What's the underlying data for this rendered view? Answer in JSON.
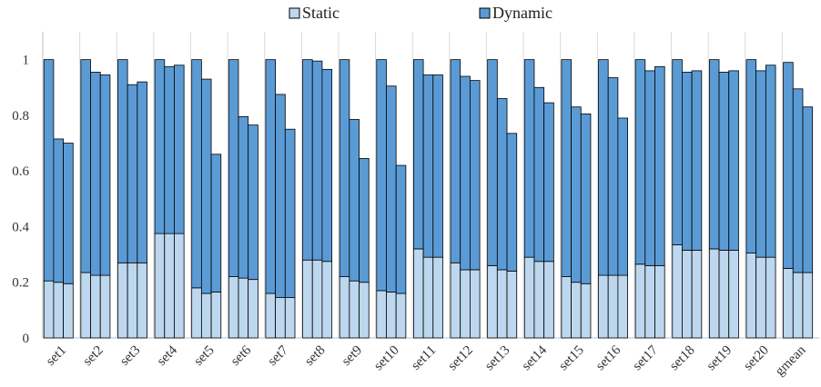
{
  "chart_data": {
    "type": "bar",
    "stacked": true,
    "bars_per_category": 3,
    "title": "",
    "xlabel": "",
    "ylabel": "",
    "ylim": [
      0,
      1.1
    ],
    "yticks": [
      0,
      0.2,
      0.4,
      0.6,
      0.8,
      1
    ],
    "ytick_labels": [
      "0",
      "0.2",
      "0.4",
      "0.6",
      "0.8",
      "1"
    ],
    "grid": false,
    "category_separators": true,
    "legend": {
      "position": "top-center"
    },
    "categories": [
      "set1",
      "set2",
      "set3",
      "set4",
      "set5",
      "set6",
      "set7",
      "set8",
      "set9",
      "set10",
      "set11",
      "set12",
      "set13",
      "set14",
      "set15",
      "set16",
      "set17",
      "set18",
      "set19",
      "set20",
      "gmean"
    ],
    "series": [
      {
        "name": "Static",
        "color": "#bdd7ee",
        "values": [
          [
            0.205,
            0.2,
            0.195
          ],
          [
            0.235,
            0.225,
            0.225
          ],
          [
            0.27,
            0.27,
            0.27
          ],
          [
            0.375,
            0.375,
            0.375
          ],
          [
            0.18,
            0.16,
            0.165
          ],
          [
            0.22,
            0.215,
            0.21
          ],
          [
            0.16,
            0.145,
            0.145
          ],
          [
            0.28,
            0.28,
            0.275
          ],
          [
            0.22,
            0.205,
            0.2
          ],
          [
            0.17,
            0.165,
            0.16
          ],
          [
            0.32,
            0.29,
            0.29
          ],
          [
            0.27,
            0.245,
            0.245
          ],
          [
            0.26,
            0.245,
            0.24
          ],
          [
            0.29,
            0.275,
            0.275
          ],
          [
            0.22,
            0.2,
            0.195
          ],
          [
            0.225,
            0.225,
            0.225
          ],
          [
            0.265,
            0.26,
            0.26
          ],
          [
            0.335,
            0.315,
            0.315
          ],
          [
            0.32,
            0.315,
            0.315
          ],
          [
            0.305,
            0.29,
            0.29
          ],
          [
            0.25,
            0.235,
            0.235
          ]
        ]
      },
      {
        "name": "Dynamic",
        "color": "#5b9bd5",
        "values": [
          [
            0.795,
            0.515,
            0.505
          ],
          [
            0.765,
            0.73,
            0.72
          ],
          [
            0.73,
            0.64,
            0.65
          ],
          [
            0.625,
            0.6,
            0.605
          ],
          [
            0.82,
            0.77,
            0.495
          ],
          [
            0.78,
            0.58,
            0.555
          ],
          [
            0.84,
            0.73,
            0.605
          ],
          [
            0.72,
            0.715,
            0.69
          ],
          [
            0.78,
            0.58,
            0.445
          ],
          [
            0.83,
            0.74,
            0.46
          ],
          [
            0.68,
            0.655,
            0.655
          ],
          [
            0.73,
            0.695,
            0.68
          ],
          [
            0.74,
            0.615,
            0.495
          ],
          [
            0.71,
            0.625,
            0.57
          ],
          [
            0.78,
            0.63,
            0.61
          ],
          [
            0.775,
            0.71,
            0.565
          ],
          [
            0.735,
            0.7,
            0.715
          ],
          [
            0.665,
            0.64,
            0.645
          ],
          [
            0.68,
            0.64,
            0.645
          ],
          [
            0.695,
            0.67,
            0.69
          ],
          [
            0.74,
            0.66,
            0.595
          ]
        ]
      }
    ]
  }
}
